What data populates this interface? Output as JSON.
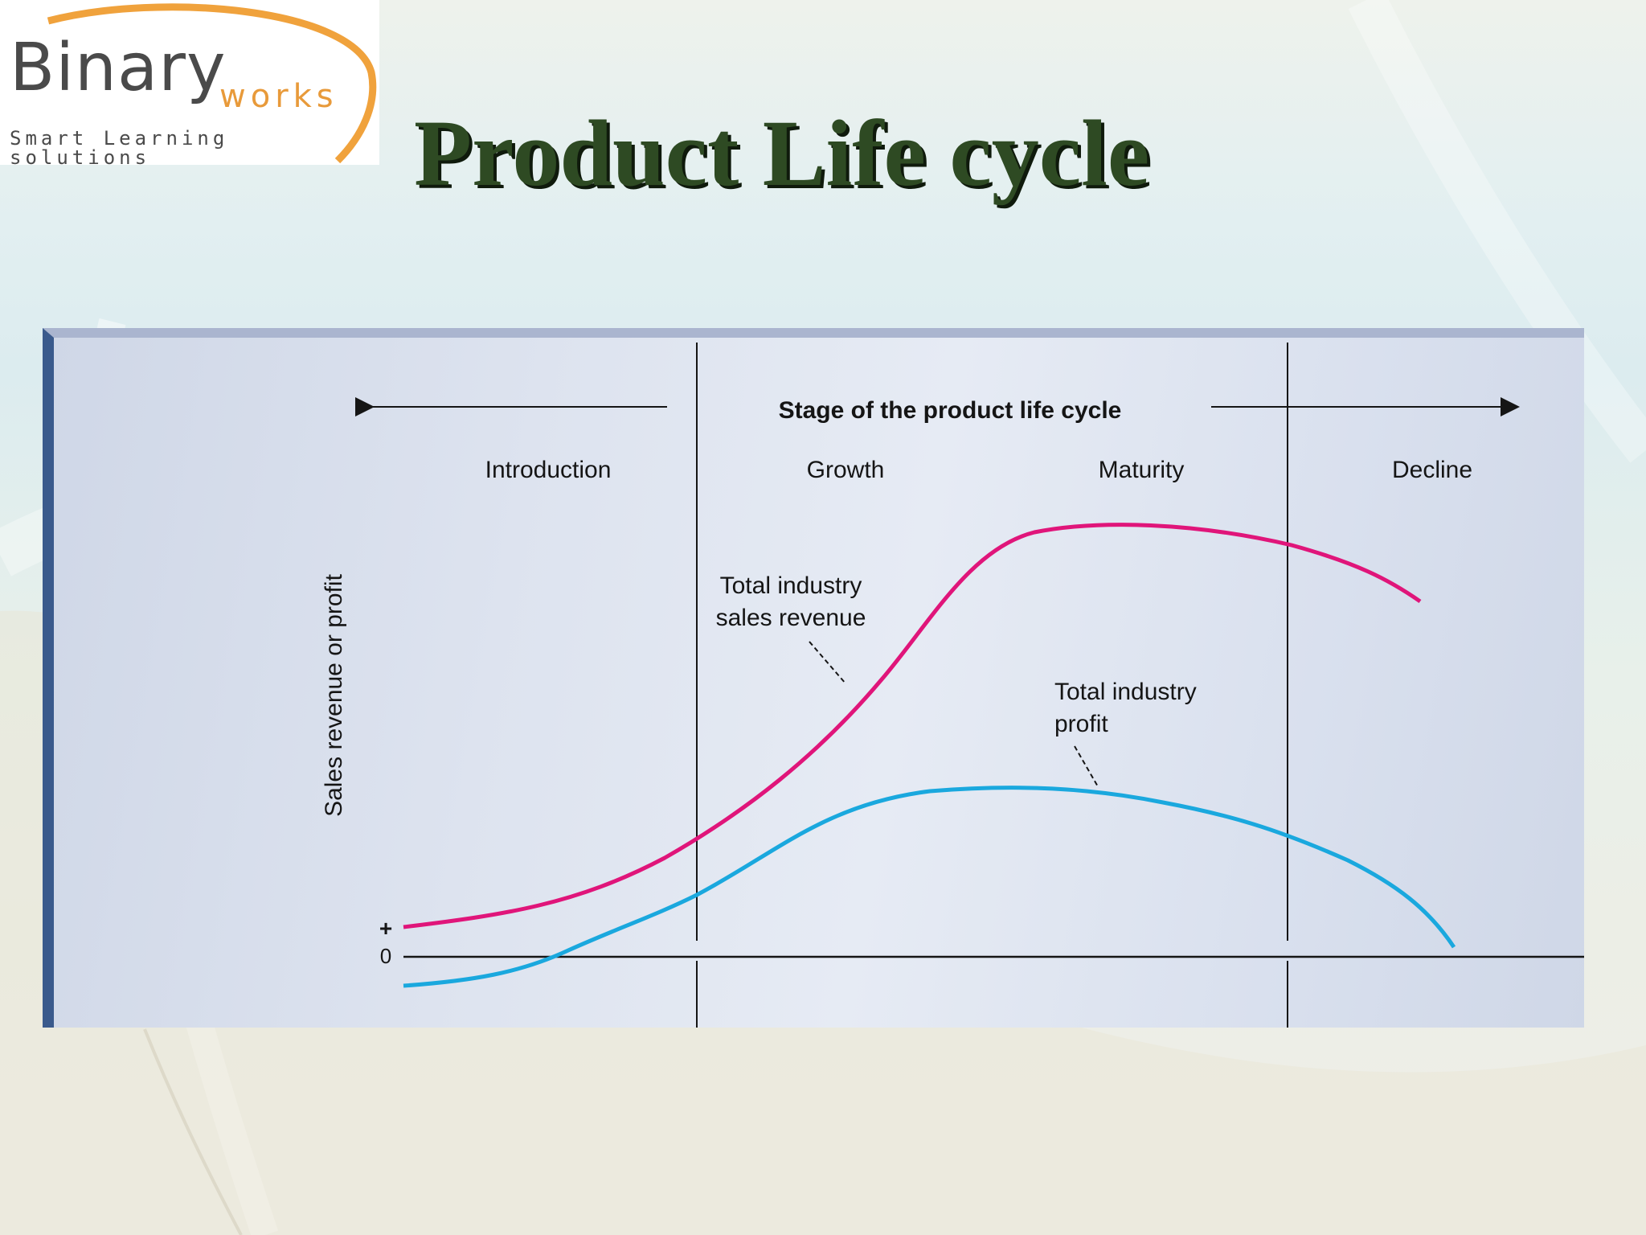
{
  "logo": {
    "brand": "Binary",
    "brand_suffix": "works",
    "tagline": "Smart Learning solutions"
  },
  "title": "Product Life cycle",
  "diagram": {
    "stage_header": "Stage of the product life cycle",
    "stages": [
      "Introduction",
      "Growth",
      "Maturity",
      "Decline"
    ],
    "y_axis_label": "Sales revenue or profit",
    "y_plus": "+",
    "y_zero": "0",
    "sales_label_line1": "Total industry",
    "sales_label_line2": "sales revenue",
    "profit_label_line1": "Total industry",
    "profit_label_line2": "profit",
    "colors": {
      "sales": "#e0157a",
      "profit": "#1aa8de",
      "frame": "#3a5a8c"
    }
  }
}
